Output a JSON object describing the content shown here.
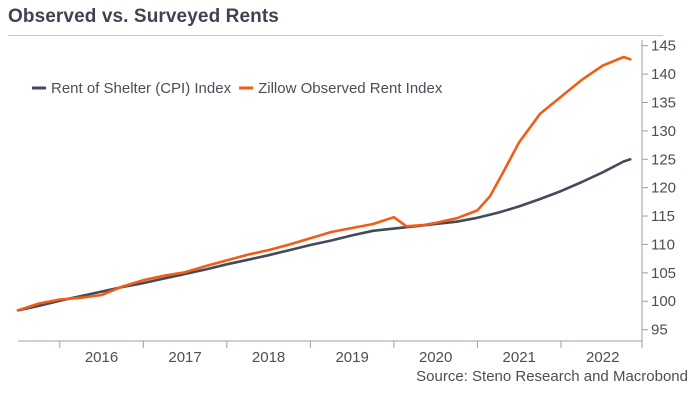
{
  "title": "Observed vs. Surveyed Rents",
  "source": "Source: Steno Research and Macrobond",
  "colors": {
    "cpi": "#414b5a",
    "zillow": "#f25c19",
    "axis": "#9aa0a8",
    "text": "#4a4f57"
  },
  "chart_data": {
    "type": "line",
    "title": "Observed vs. Surveyed Rents",
    "xlabel": "",
    "ylabel": "",
    "xlim": [
      2015.5,
      2022.97
    ],
    "ylim": [
      93,
      146
    ],
    "y_ticks": [
      95,
      100,
      105,
      110,
      115,
      120,
      125,
      130,
      135,
      140,
      145
    ],
    "x_tick_labels": [
      "2016",
      "2017",
      "2018",
      "2019",
      "2020",
      "2021",
      "2022"
    ],
    "y_axis_position": "right",
    "grid": false,
    "legend_position": "top-left",
    "series": [
      {
        "name": "Rent of Shelter (CPI) Index",
        "color": "#414b5a",
        "x": [
          2015.5,
          2015.75,
          2016.0,
          2016.25,
          2016.5,
          2016.75,
          2017.0,
          2017.25,
          2017.5,
          2017.75,
          2018.0,
          2018.25,
          2018.5,
          2018.75,
          2019.0,
          2019.25,
          2019.5,
          2019.75,
          2020.0,
          2020.25,
          2020.5,
          2020.75,
          2021.0,
          2021.25,
          2021.5,
          2021.75,
          2022.0,
          2022.25,
          2022.5,
          2022.75,
          2022.83
        ],
        "values": [
          98.4,
          99.2,
          100.1,
          100.9,
          101.7,
          102.5,
          103.2,
          104.0,
          104.8,
          105.6,
          106.5,
          107.3,
          108.1,
          109.0,
          109.9,
          110.7,
          111.6,
          112.4,
          112.8,
          113.2,
          113.6,
          114.0,
          114.7,
          115.6,
          116.7,
          118.0,
          119.4,
          121.0,
          122.7,
          124.6,
          125.0
        ]
      },
      {
        "name": "Zillow Observed Rent Index",
        "color": "#f25c19",
        "x": [
          2015.5,
          2015.75,
          2016.0,
          2016.25,
          2016.5,
          2016.75,
          2017.0,
          2017.25,
          2017.5,
          2017.75,
          2018.0,
          2018.25,
          2018.5,
          2018.75,
          2019.0,
          2019.25,
          2019.5,
          2019.75,
          2020.0,
          2020.15,
          2020.35,
          2020.5,
          2020.75,
          2021.0,
          2021.15,
          2021.3,
          2021.5,
          2021.75,
          2022.0,
          2022.25,
          2022.5,
          2022.75,
          2022.83
        ],
        "values": [
          98.4,
          99.6,
          100.3,
          100.6,
          101.1,
          102.6,
          103.7,
          104.5,
          105.1,
          106.2,
          107.2,
          108.2,
          109.0,
          110.0,
          111.1,
          112.2,
          112.9,
          113.6,
          114.8,
          113.2,
          113.4,
          113.8,
          114.6,
          116.0,
          118.5,
          122.5,
          128.0,
          133.0,
          136.0,
          139.0,
          141.5,
          143.0,
          142.6
        ]
      }
    ]
  }
}
